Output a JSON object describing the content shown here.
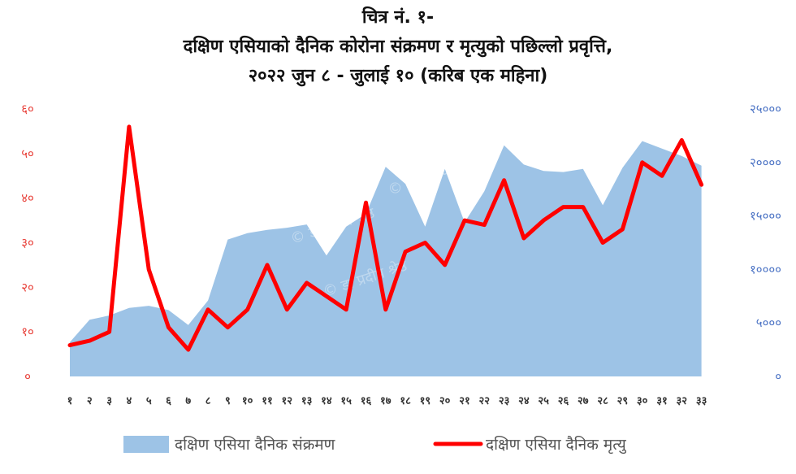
{
  "title_lines": [
    "चित्र नं. १-",
    "दक्षिण एसियाको दैनिक कोरोना संक्रमण र मृत्युको पछिल्लो प्रवृत्ति,",
    "२०२२ जुन ८ - जुलाई १० (करिब एक महिना)"
  ],
  "watermark": "© डा प्रदीप श्रेष्ठ",
  "chart_data": {
    "type": "area+line",
    "categories": [
      "१",
      "२",
      "३",
      "४",
      "५",
      "६",
      "७",
      "८",
      "९",
      "१०",
      "११",
      "१२",
      "१३",
      "१४",
      "१५",
      "१६",
      "१७",
      "१८",
      "१९",
      "२०",
      "२१",
      "२२",
      "२३",
      "२४",
      "२५",
      "२६",
      "२७",
      "२८",
      "२९",
      "३०",
      "३१",
      "३२",
      "३३"
    ],
    "series": [
      {
        "name": "दक्षिण एसिया दैनिक संक्रमण",
        "type": "area",
        "axis": "right",
        "color": "#9dc3e6",
        "values": [
          3200,
          5300,
          5700,
          6400,
          6600,
          6200,
          4800,
          7100,
          12800,
          13400,
          13700,
          13900,
          14200,
          11300,
          14000,
          15200,
          19600,
          18000,
          14000,
          19400,
          14400,
          17300,
          21600,
          19800,
          19200,
          19100,
          19400,
          16000,
          19500,
          22000,
          21300,
          20600,
          19700
        ]
      },
      {
        "name": "दक्षिण एसिया  दैनिक मृत्यु",
        "type": "line",
        "axis": "left",
        "color": "#ff0000",
        "values": [
          7,
          8,
          10,
          56,
          24,
          11,
          6,
          15,
          11,
          15,
          25,
          15,
          21,
          18,
          15,
          39,
          15,
          28,
          30,
          25,
          35,
          34,
          44,
          31,
          35,
          38,
          38,
          30,
          33,
          48,
          45,
          53,
          43
        ]
      }
    ],
    "y_left": {
      "ticks": [
        "०",
        "१०",
        "२०",
        "३०",
        "४०",
        "५०",
        "६०"
      ],
      "min": 0,
      "max": 60
    },
    "y_right": {
      "ticks": [
        "०",
        "५०००",
        "१००००",
        "१५०००",
        "२००००",
        "२५०००"
      ],
      "min": 0,
      "max": 25000
    },
    "grid": false,
    "legend_position": "bottom",
    "colors": {
      "area": "#9dc3e6",
      "line": "#ff0000",
      "left_axis": "#e8413a",
      "right_axis": "#4a72c4"
    }
  }
}
